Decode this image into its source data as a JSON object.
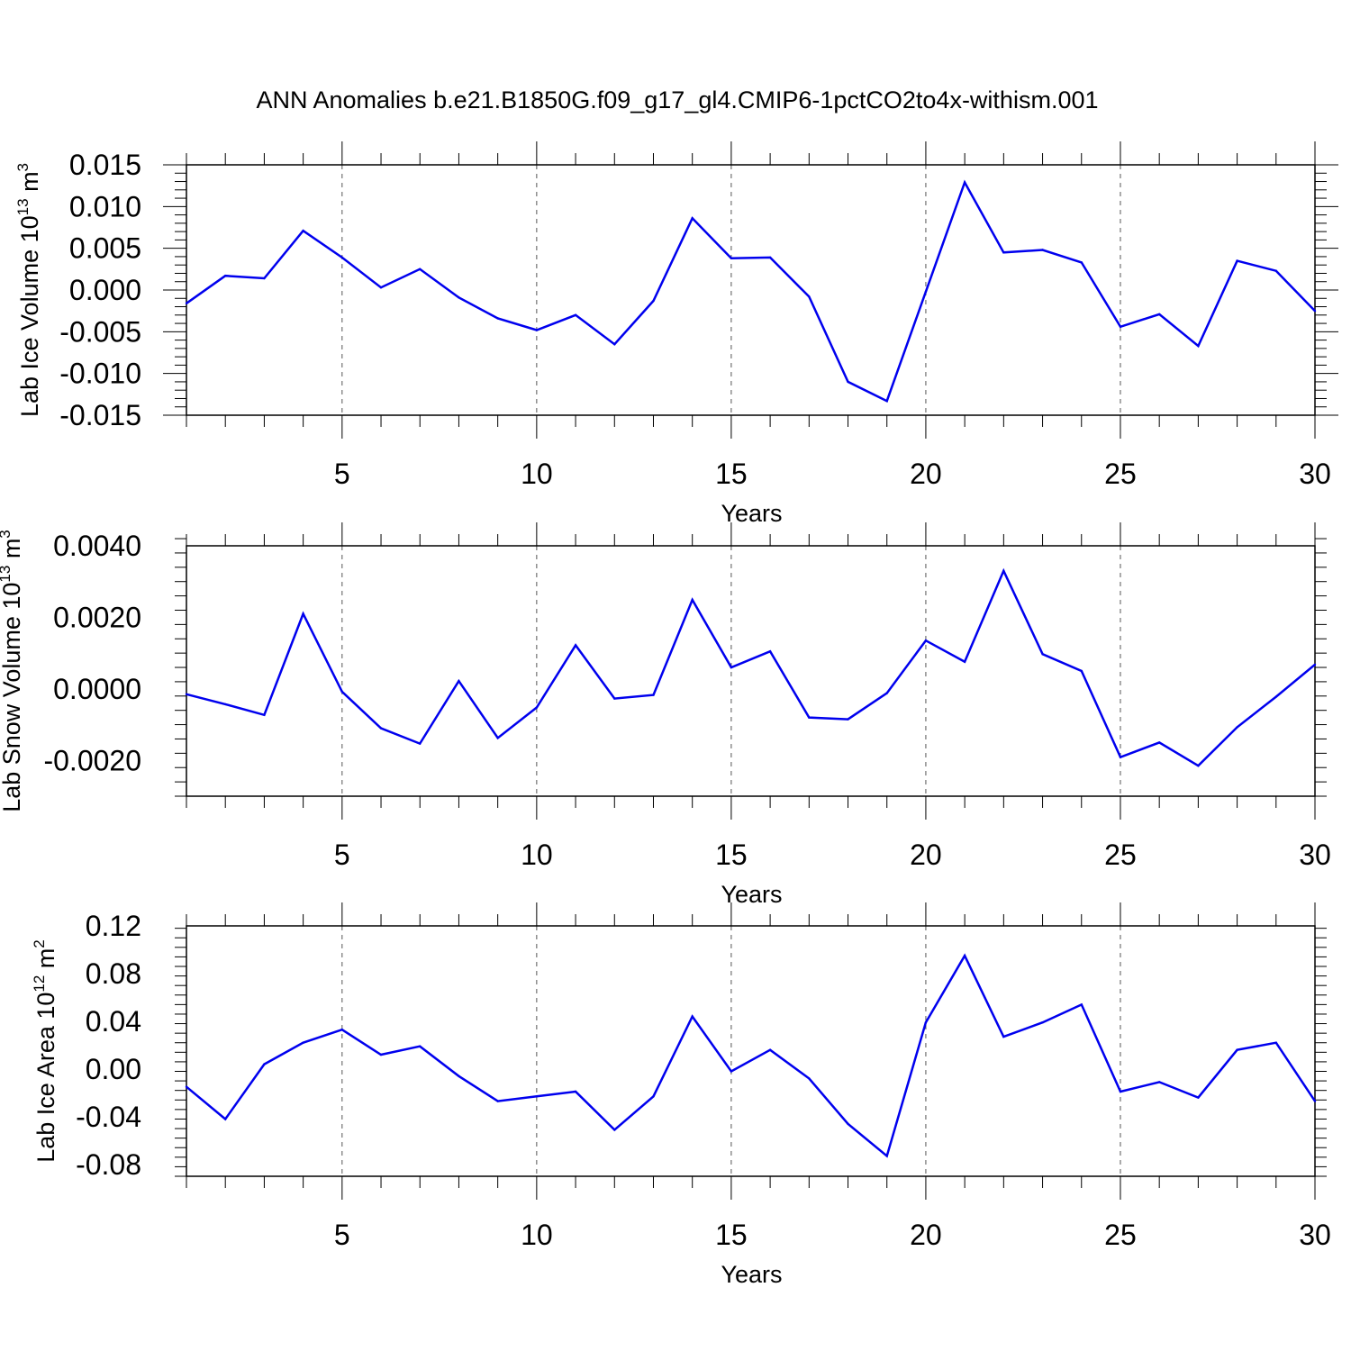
{
  "title": "ANN Anomalies b.e21.B1850G.f09_g17_gl4.CMIP6-1pctCO2to4x-withism.001",
  "colors": {
    "series": "#0000ee",
    "axis": "#000000",
    "grid": "#555555"
  },
  "chart_data": [
    {
      "type": "line",
      "xlabel": "Years",
      "ylabel": {
        "text": "Lab Ice Volume 10",
        "exp": "13",
        "unit": " m",
        "unit_exp": "3"
      },
      "xlim": [
        1,
        30
      ],
      "ylim": [
        -0.015,
        0.015
      ],
      "xticks": [
        5,
        10,
        15,
        20,
        25,
        30
      ],
      "yticks": [
        -0.015,
        -0.01,
        -0.005,
        0.0,
        0.005,
        0.01,
        0.015
      ],
      "ytick_labels": [
        "-0.015",
        "-0.010",
        "-0.005",
        "0.000",
        "0.005",
        "0.010",
        "0.015"
      ],
      "x": [
        1,
        2,
        3,
        4,
        5,
        6,
        7,
        8,
        9,
        10,
        11,
        12,
        13,
        14,
        15,
        16,
        17,
        18,
        19,
        20,
        21,
        22,
        23,
        24,
        25,
        26,
        27,
        28,
        29,
        30
      ],
      "values": [
        -0.0016,
        0.0017,
        0.0014,
        0.0071,
        0.0039,
        0.0003,
        0.0025,
        -0.0009,
        -0.0034,
        -0.0048,
        -0.003,
        -0.0065,
        -0.0013,
        0.0086,
        0.0038,
        0.0039,
        -0.0008,
        -0.011,
        -0.0133,
        -0.0002,
        0.0129,
        0.0045,
        0.0048,
        0.0033,
        -0.0044,
        -0.0029,
        -0.0067,
        0.0035,
        0.0023,
        -0.0025
      ],
      "grid": "dashed vertical at x ticks"
    },
    {
      "type": "line",
      "xlabel": "Years",
      "ylabel": {
        "text": "Lab Snow Volume 10",
        "exp": "13",
        "unit": " m",
        "unit_exp": "3"
      },
      "xlim": [
        1,
        30
      ],
      "ylim": [
        -0.003,
        0.004
      ],
      "xticks": [
        5,
        10,
        15,
        20,
        25,
        30
      ],
      "yticks": [
        -0.002,
        0.0,
        0.002,
        0.004
      ],
      "ytick_labels": [
        "-0.0020",
        "0.0000",
        "0.0020",
        "0.0040"
      ],
      "x": [
        1,
        2,
        3,
        4,
        5,
        6,
        7,
        8,
        9,
        10,
        11,
        12,
        13,
        14,
        15,
        16,
        17,
        18,
        19,
        20,
        21,
        22,
        23,
        24,
        25,
        26,
        27,
        28,
        29,
        30
      ],
      "values": [
        -0.00015,
        -0.00043,
        -0.00073,
        0.0021,
        -8e-05,
        -0.0011,
        -0.00153,
        0.00022,
        -0.00137,
        -0.00052,
        0.00122,
        -0.00027,
        -0.00017,
        0.00249,
        0.0006,
        0.00105,
        -0.0008,
        -0.00085,
        -0.00012,
        0.00135,
        0.00076,
        0.0033,
        0.00097,
        0.0005,
        -0.00191,
        -0.0015,
        -0.00215,
        -0.00107,
        -0.00022,
        0.00068
      ],
      "grid": "dashed vertical at x ticks"
    },
    {
      "type": "line",
      "xlabel": "Years",
      "ylabel": {
        "text": "Lab Ice Area 10",
        "exp": "12",
        "unit": " m",
        "unit_exp": "2"
      },
      "xlim": [
        1,
        30
      ],
      "ylim": [
        -0.09,
        0.12
      ],
      "xticks": [
        5,
        10,
        15,
        20,
        25,
        30
      ],
      "yticks": [
        -0.08,
        -0.04,
        0.0,
        0.04,
        0.08,
        0.12
      ],
      "ytick_labels": [
        "-0.08",
        "-0.04",
        "0.00",
        "0.04",
        "0.08",
        "0.12"
      ],
      "x": [
        1,
        2,
        3,
        4,
        5,
        6,
        7,
        8,
        9,
        10,
        11,
        12,
        13,
        14,
        15,
        16,
        17,
        18,
        19,
        20,
        21,
        22,
        23,
        24,
        25,
        26,
        27,
        28,
        29,
        30
      ],
      "values": [
        -0.015,
        -0.042,
        0.004,
        0.022,
        0.033,
        0.012,
        0.019,
        -0.006,
        -0.027,
        -0.023,
        -0.019,
        -0.051,
        -0.023,
        0.044,
        -0.002,
        0.016,
        -0.008,
        -0.046,
        -0.073,
        0.039,
        0.095,
        0.027,
        0.039,
        0.054,
        -0.019,
        -0.011,
        -0.024,
        0.016,
        0.022,
        -0.027
      ],
      "grid": "dashed vertical at x ticks"
    }
  ]
}
